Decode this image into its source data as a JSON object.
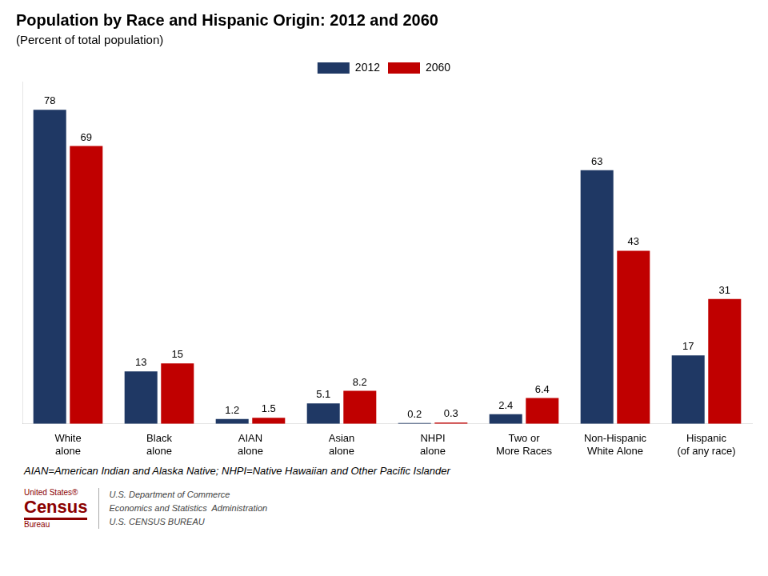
{
  "chart_data": {
    "type": "bar",
    "title": "Population by Race and Hispanic Origin: 2012 and 2060",
    "subtitle": "(Percent of total population)",
    "categories": [
      "White\nalone",
      "Black\nalone",
      "AIAN\nalone",
      "Asian\nalone",
      "NHPI\nalone",
      "Two or\nMore Races",
      "Non-Hispanic\nWhite Alone",
      "Hispanic\n(of any race)"
    ],
    "series": [
      {
        "name": "2012",
        "color": "#1F3864",
        "values": [
          78,
          13,
          1.2,
          5.1,
          0.2,
          2.4,
          63,
          17
        ]
      },
      {
        "name": "2060",
        "color": "#C00000",
        "values": [
          69,
          15,
          1.5,
          8.2,
          0.3,
          6.4,
          43,
          31
        ]
      }
    ],
    "ylim": [
      0,
      85
    ],
    "grid": false,
    "legend": "top",
    "data_labels": true,
    "tick_labels": "x",
    "footnote": "AIAN=American Indian and Alaska Native; NHPI=Native Hawaiian and Other Pacific Islander",
    "annotations": [
      [
        "United States®",
        "Census",
        "Bureau"
      ],
      [
        "U.S. Department of Commerce",
        "Economics and Statistics  Administration",
        "U.S. CENSUS BUREAU"
      ]
    ]
  }
}
